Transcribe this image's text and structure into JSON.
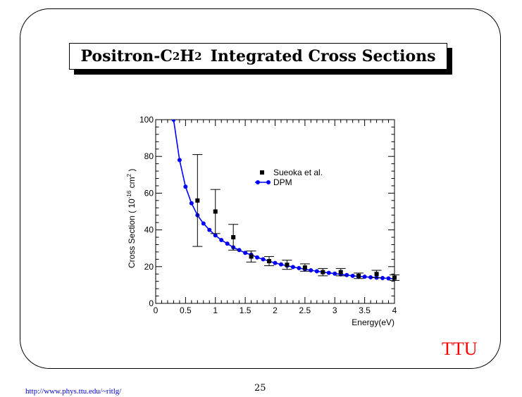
{
  "slide": {
    "title": {
      "prefix": "Positron-C",
      "sub1": "2",
      "mid": "H",
      "sub2": "2",
      "rest": "Integrated Cross Sections"
    },
    "logo_text": "TTU",
    "footer_url": "http://www.phys.ttu.edu/~ritlg/",
    "page_number": "25"
  },
  "chart_data": {
    "type": "line",
    "xlabel": "Energy(eV)",
    "ylabel": {
      "prefix": "Cross Section ( 10",
      "exp1": "-16",
      "mid": " cm",
      "exp2": "2",
      "suffix": " )"
    },
    "xlim": [
      0,
      4
    ],
    "ylim": [
      0,
      100
    ],
    "x_ticks": [
      "0",
      "0.5",
      "1",
      "1.5",
      "2",
      "2.5",
      "3",
      "3.5",
      "4"
    ],
    "y_ticks": [
      "0",
      "20",
      "40",
      "60",
      "80",
      "100"
    ],
    "grid": false,
    "legend_position": "top-right",
    "series": [
      {
        "name": "Sueoka et al.",
        "marker": "square",
        "color": "#000000",
        "points": [
          {
            "x": 0.7,
            "y": 56,
            "err": 25
          },
          {
            "x": 1.0,
            "y": 50,
            "err": 12
          },
          {
            "x": 1.3,
            "y": 36,
            "err": 7
          },
          {
            "x": 1.6,
            "y": 25.5,
            "err": 3
          },
          {
            "x": 1.9,
            "y": 23,
            "err": 2.5
          },
          {
            "x": 2.2,
            "y": 21,
            "err": 2.5
          },
          {
            "x": 2.5,
            "y": 19.5,
            "err": 2
          },
          {
            "x": 2.8,
            "y": 17,
            "err": 2
          },
          {
            "x": 3.1,
            "y": 17,
            "err": 2
          },
          {
            "x": 3.4,
            "y": 15,
            "err": 1.5
          },
          {
            "x": 3.7,
            "y": 16,
            "err": 2
          },
          {
            "x": 4.0,
            "y": 14,
            "err": 1.5
          }
        ]
      },
      {
        "name": "DPM",
        "marker": "circle",
        "color": "#0000ff",
        "x": [
          0.3,
          0.4,
          0.5,
          0.6,
          0.7,
          0.8,
          0.9,
          1.0,
          1.1,
          1.2,
          1.3,
          1.4,
          1.5,
          1.6,
          1.7,
          1.8,
          1.9,
          2.0,
          2.1,
          2.2,
          2.3,
          2.4,
          2.5,
          2.6,
          2.7,
          2.8,
          2.9,
          3.0,
          3.1,
          3.2,
          3.3,
          3.4,
          3.5,
          3.6,
          3.7,
          3.8,
          3.9,
          4.0
        ],
        "y": [
          100,
          78,
          63.5,
          54.5,
          48,
          43.5,
          40,
          37,
          34.5,
          32.5,
          30.5,
          29,
          27.5,
          26.5,
          25,
          24,
          23,
          22,
          21.2,
          20.5,
          19.8,
          19.2,
          18.6,
          18,
          17.5,
          17,
          16.6,
          16.2,
          15.8,
          15.4,
          15,
          14.7,
          14.5,
          14.2,
          14,
          13.8,
          13.6,
          13.4
        ]
      }
    ]
  }
}
